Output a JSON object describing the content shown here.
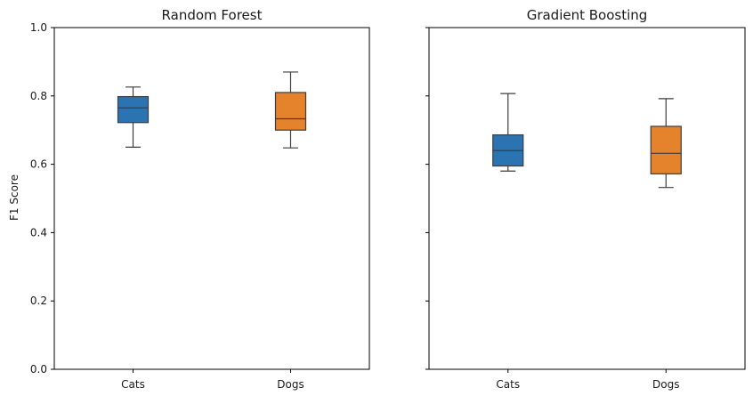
{
  "chart_data": {
    "type": "boxplot",
    "ylabel": "F1 Score",
    "ylim": [
      0,
      1
    ],
    "yticks": [
      0.0,
      0.2,
      0.4,
      0.6,
      0.8,
      1.0
    ],
    "ytick_labels": [
      "0.0",
      "0.2",
      "0.4",
      "0.6",
      "0.8",
      "1.0"
    ],
    "shared_y": true,
    "grid": false,
    "colors": {
      "Cats": "#2b74b1",
      "Dogs": "#e5832c"
    },
    "panels": [
      {
        "title": "Random Forest",
        "categories": [
          "Cats",
          "Dogs"
        ],
        "boxes": [
          {
            "category": "Cats",
            "whisker_low": 0.65,
            "q1": 0.722,
            "median": 0.765,
            "q3": 0.798,
            "whisker_high": 0.826
          },
          {
            "category": "Dogs",
            "whisker_low": 0.648,
            "q1": 0.7,
            "median": 0.733,
            "q3": 0.81,
            "whisker_high": 0.87
          }
        ]
      },
      {
        "title": "Gradient Boosting",
        "categories": [
          "Cats",
          "Dogs"
        ],
        "boxes": [
          {
            "category": "Cats",
            "whisker_low": 0.58,
            "q1": 0.595,
            "median": 0.64,
            "q3": 0.686,
            "whisker_high": 0.807
          },
          {
            "category": "Dogs",
            "whisker_low": 0.532,
            "q1": 0.572,
            "median": 0.632,
            "q3": 0.711,
            "whisker_high": 0.792
          }
        ]
      }
    ]
  }
}
